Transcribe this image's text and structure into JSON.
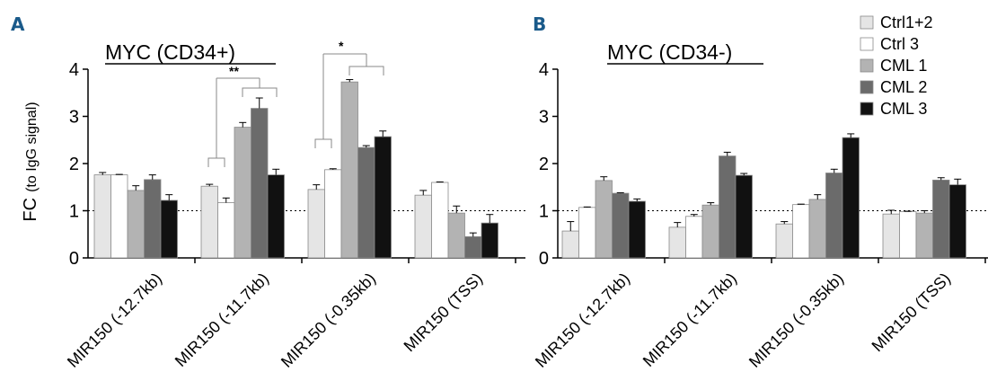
{
  "colors": {
    "Ctrl1+2": "#e5e5e5",
    "Ctrl 3": "#ffffff",
    "CML 1": "#b3b3b3",
    "CML 2": "#6b6b6b",
    "CML 3": "#111111",
    "panel_letter": "#1a5a8a"
  },
  "chart_data": [
    {
      "panel": "A",
      "type": "bar",
      "title": "MYC (CD34+)",
      "ylabel": "FC",
      "ylabel_sub": "(to IgG signal)",
      "xlabel": "",
      "ylim": [
        0,
        4
      ],
      "yticks": [
        "0",
        "1",
        "2",
        "3",
        "4"
      ],
      "reference_line": 1,
      "categories": [
        "MIR150 (-12.7kb)",
        "MIR150 (-11.7kb)",
        "MIR150 (-0.35kb)",
        "MIR150 (TSS)"
      ],
      "series": [
        {
          "name": "Ctrl1+2",
          "values": [
            1.76,
            1.52,
            1.45,
            1.33
          ],
          "errors": [
            0.05,
            0.04,
            0.1,
            0.1
          ]
        },
        {
          "name": "Ctrl 3",
          "values": [
            1.76,
            1.17,
            1.87,
            1.6
          ],
          "errors": [
            0.01,
            0.1,
            0.02,
            0.01
          ]
        },
        {
          "name": "CML 1",
          "values": [
            1.43,
            2.77,
            3.73,
            0.95
          ],
          "errors": [
            0.1,
            0.1,
            0.05,
            0.15
          ]
        },
        {
          "name": "CML 2",
          "values": [
            1.66,
            3.17,
            2.34,
            0.45
          ],
          "errors": [
            0.1,
            0.22,
            0.04,
            0.08
          ]
        },
        {
          "name": "CML 3",
          "values": [
            1.22,
            1.76,
            2.57,
            0.74
          ],
          "errors": [
            0.12,
            0.12,
            0.12,
            0.18
          ]
        }
      ],
      "significance": [
        "**",
        "*"
      ]
    },
    {
      "panel": "B",
      "type": "bar",
      "title": "MYC (CD34-)",
      "ylabel": "",
      "xlabel": "",
      "ylim": [
        0,
        4
      ],
      "yticks": [
        "0",
        "1",
        "2",
        "3",
        "4"
      ],
      "reference_line": 1,
      "categories": [
        "MIR150 (-12.7kb)",
        "MIR150 (-11.7kb)",
        "MIR150 (-0.35kb)",
        "MIR150 (TSS)"
      ],
      "series": [
        {
          "name": "Ctrl1+2",
          "values": [
            0.57,
            0.65,
            0.72,
            0.93
          ],
          "errors": [
            0.2,
            0.1,
            0.05,
            0.08
          ]
        },
        {
          "name": "Ctrl 3",
          "values": [
            1.07,
            0.88,
            1.13,
            0.98
          ],
          "errors": [
            0.01,
            0.04,
            0.01,
            0.01
          ]
        },
        {
          "name": "CML 1",
          "values": [
            1.64,
            1.12,
            1.24,
            0.95
          ],
          "errors": [
            0.08,
            0.05,
            0.1,
            0.05
          ]
        },
        {
          "name": "CML 2",
          "values": [
            1.37,
            2.16,
            1.8,
            1.65
          ],
          "errors": [
            0.01,
            0.08,
            0.08,
            0.05
          ]
        },
        {
          "name": "CML 3",
          "values": [
            1.2,
            1.75,
            2.55,
            1.55
          ],
          "errors": [
            0.05,
            0.04,
            0.08,
            0.12
          ]
        }
      ]
    }
  ],
  "legend": [
    "Ctrl1+2",
    "Ctrl 3",
    "CML 1",
    "CML 2",
    "CML 3"
  ]
}
